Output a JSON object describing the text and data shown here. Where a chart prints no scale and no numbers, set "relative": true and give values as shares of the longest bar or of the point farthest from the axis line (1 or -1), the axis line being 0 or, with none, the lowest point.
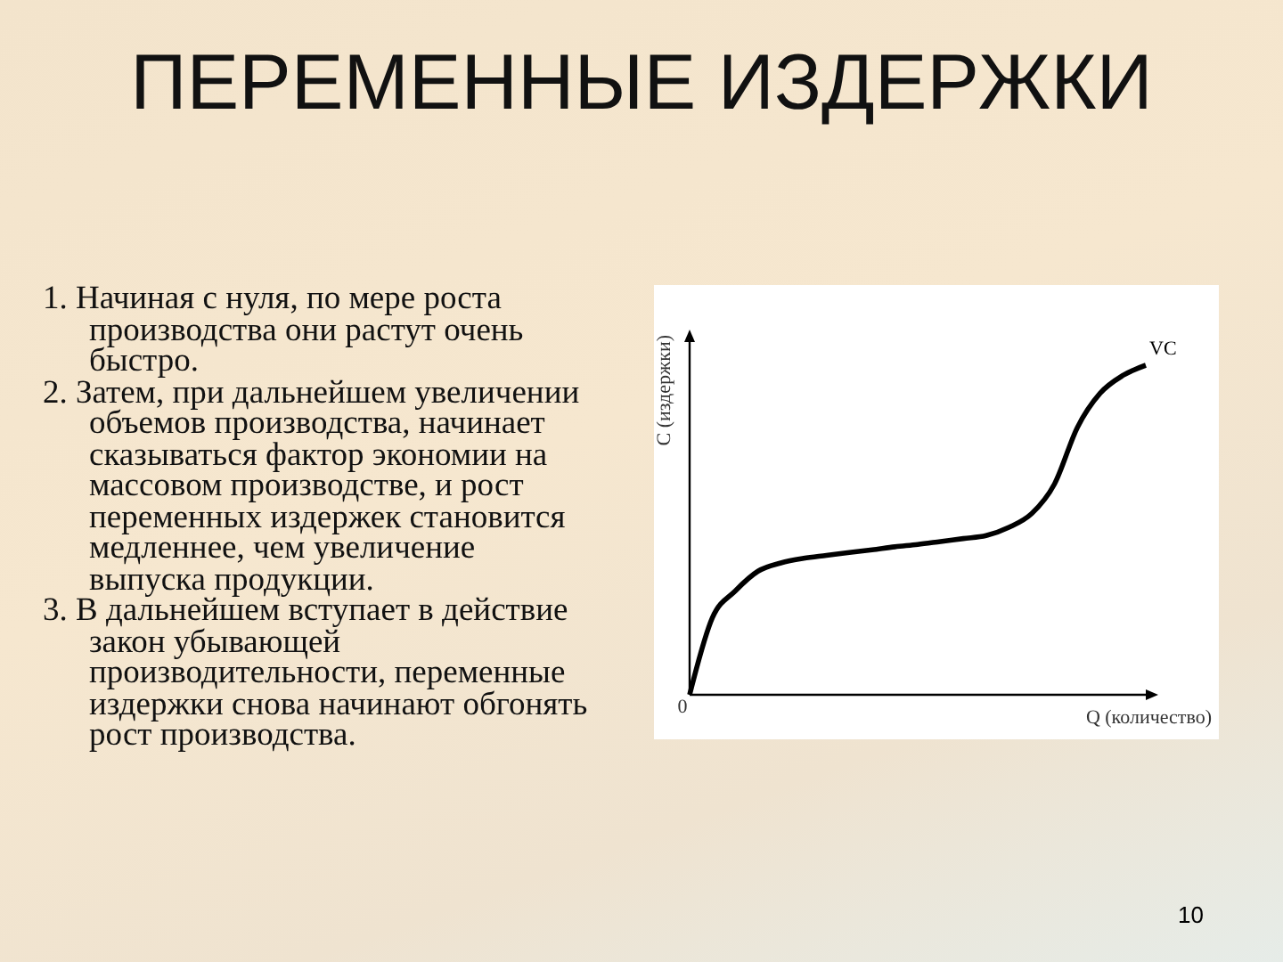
{
  "chart_data": {
    "type": "line",
    "title": "ПЕРЕМЕННЫЕ ИЗДЕРЖКИ",
    "xlabel": "Q (количество)",
    "ylabel": "C (издержки)",
    "relative": true,
    "categories": [
      null,
      null,
      null,
      null,
      null,
      null,
      null,
      null,
      null,
      null,
      null,
      null,
      null,
      null,
      null,
      null,
      null,
      null,
      null,
      null,
      null
    ],
    "series": [
      {
        "name": "VC",
        "color": "#000000",
        "values": [
          0,
          0.234,
          0.315,
          0.375,
          0.4,
          0.414,
          0.423,
          0.432,
          0.44,
          0.449,
          0.456,
          0.465,
          0.474,
          0.483,
          0.508,
          0.55,
          0.64,
          0.811,
          0.915,
          0.969,
          1
        ]
      }
    ],
    "annotations": [
      "1. Начиная с нуля, по мере роста производства они растут очень быстро.",
      "2. Затем, при дальнейшем увеличении объемов производства, начинает сказываться фактор экономии на массовом производстве, и рост переменных издержек становится медленнее, чем увеличение выпуска продукции.",
      "3. В дальнейшем вступает в действие закон убывающей производительности, переменные издержки снова начинают обгонять рост производства.",
      "0",
      "10"
    ]
  }
}
